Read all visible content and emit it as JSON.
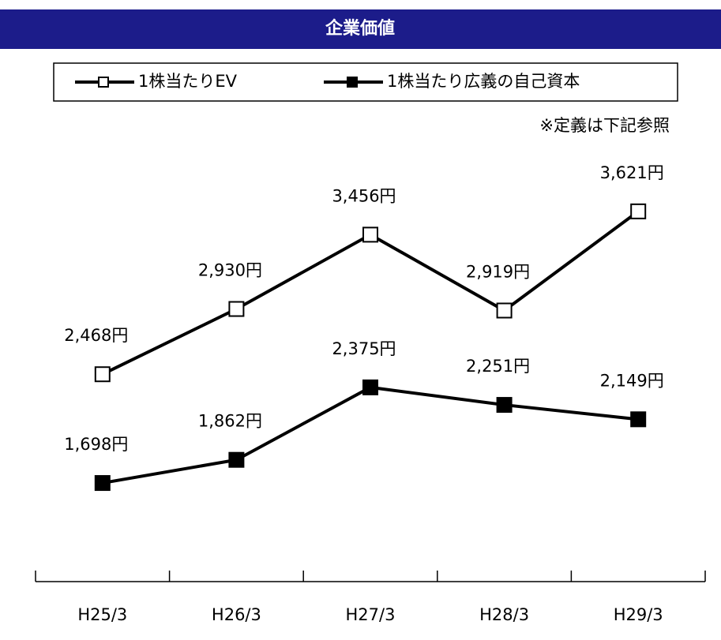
{
  "chart_data": {
    "type": "line",
    "title": "企業価値",
    "note": "※定義は下記参照",
    "categories": [
      "H25/3",
      "H26/3",
      "H27/3",
      "H28/3",
      "H29/3"
    ],
    "series": [
      {
        "name": "1株当たりEV",
        "color": "#000000",
        "marker_fill": "#ffffff",
        "values": [
          2468,
          2930,
          3456,
          2919,
          3621
        ],
        "value_labels": [
          "2,468円",
          "2,930円",
          "3,456円",
          "2,919円",
          "3,621円"
        ]
      },
      {
        "name": "1株当たり広義の自己資本",
        "color": "#000000",
        "marker_fill": "#000000",
        "values": [
          1698,
          1862,
          2375,
          2251,
          2149
        ],
        "value_labels": [
          "1,698円",
          "1,862円",
          "2,375円",
          "2,251円",
          "2,149円"
        ]
      }
    ],
    "ylim": [
      1000,
      4000
    ]
  }
}
